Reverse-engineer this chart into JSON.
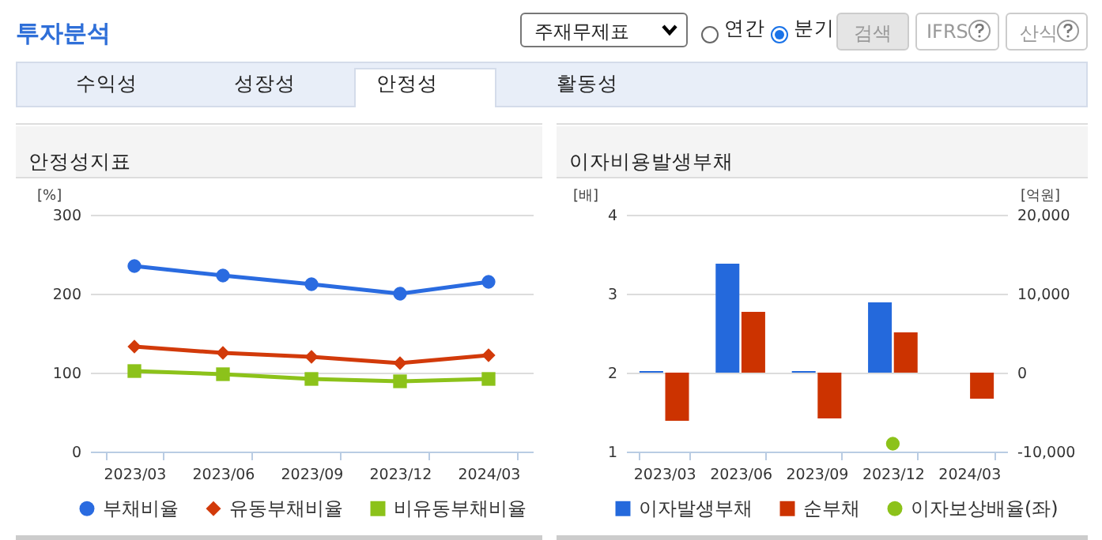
{
  "chart_data": [
    {
      "type": "other",
      "title": "투자분석",
      "annotations": [
        "주재무제표",
        "연간",
        "분기",
        "검색",
        "IFRS",
        "산식",
        "수익성",
        "성장성",
        "안정성",
        "활동성"
      ]
    },
    {
      "type": "line",
      "title": "안정성지표",
      "ylabel": "[%]",
      "categories": [
        "2023/03",
        "2023/06",
        "2023/09",
        "2023/12",
        "2024/03"
      ],
      "ylim": [
        0,
        300
      ],
      "yticks": [
        0,
        100,
        200,
        300
      ],
      "grid": "y",
      "legend": "bottom",
      "line_style": "solid",
      "series": [
        {
          "name": "부채비율",
          "color": "#2a6be0",
          "marker": "circle",
          "values": [
            235,
            223,
            212,
            200,
            215
          ]
        },
        {
          "name": "유동부채비율",
          "color": "#d23a0a",
          "marker": "diamond",
          "values": [
            133,
            125,
            120,
            112,
            122
          ]
        },
        {
          "name": "비유동부채비율",
          "color": "#8cc21a",
          "marker": "square",
          "values": [
            102,
            98,
            92,
            89,
            92
          ]
        }
      ]
    },
    {
      "type": "bar",
      "title": "이자비용발생부채",
      "ylabel": "[배]",
      "y2label": "[억원]",
      "categories": [
        "2023/03",
        "2023/06",
        "2023/09",
        "2023/12",
        "2024/03"
      ],
      "ylim": [
        1,
        4
      ],
      "yticks": [
        1,
        2,
        3,
        4
      ],
      "y2lim": [
        -10000,
        20000
      ],
      "y2ticks": [
        {
          "value": -10000,
          "label": "-10,000"
        },
        0,
        {
          "value": 10000,
          "label": "10,000"
        },
        {
          "value": 20000,
          "label": "20,000"
        }
      ],
      "grid": "y",
      "legend": "bottom",
      "series": [
        {
          "name": "이자발생부채",
          "color": "#2469dc",
          "axis": "y2",
          "values": [
            200,
            13800,
            200,
            8900,
            null
          ]
        },
        {
          "name": "순부채",
          "color": "#cc3300",
          "axis": "y2",
          "values": [
            -6100,
            7700,
            -5800,
            5100,
            -3300
          ]
        },
        {
          "name": "이자보상배율(좌)",
          "type": "scatter",
          "color": "#8cc21a",
          "marker": "circle",
          "values": [
            null,
            null,
            null,
            1.1,
            null
          ]
        }
      ]
    }
  ]
}
